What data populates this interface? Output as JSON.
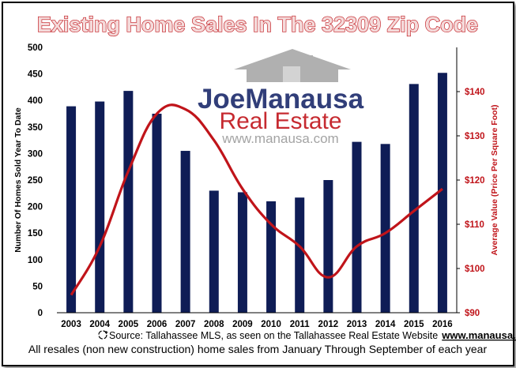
{
  "chart_data": {
    "type": "bar",
    "title": "Existing Home Sales In The 32309 Zip Code",
    "categories": [
      "2003",
      "2004",
      "2005",
      "2006",
      "2007",
      "2008",
      "2009",
      "2010",
      "2011",
      "2012",
      "2013",
      "2014",
      "2015",
      "2016"
    ],
    "series": [
      {
        "name": "Number Of Homes Sold Year To Date",
        "type": "bar",
        "axis": "left",
        "color": "#0f1d56",
        "values": [
          389,
          398,
          418,
          375,
          305,
          230,
          227,
          210,
          217,
          250,
          322,
          318,
          431,
          452
        ]
      },
      {
        "name": "Average Value (Price Per Square Foot)",
        "type": "line",
        "axis": "right",
        "color": "#c0141a",
        "values": [
          94,
          105,
          122,
          135,
          136,
          129,
          118,
          110,
          105,
          98,
          105,
          108,
          113,
          118
        ]
      }
    ],
    "ylabel": "Number Of Homes Sold Year To Date",
    "ylim": [
      0,
      500
    ],
    "yticks": [
      "0",
      "50",
      "100",
      "150",
      "200",
      "250",
      "300",
      "350",
      "400",
      "450",
      "500"
    ],
    "y2label": "Average Value (Price Per Square Foot)",
    "y2lim": [
      90,
      150
    ],
    "y2ticks": [
      "$90",
      "$100",
      "$110",
      "$120",
      "$130",
      "$140"
    ],
    "grid": false,
    "legend": "none"
  },
  "logo": {
    "word1": "Joe",
    "word2": "Manausa",
    "line2": "Real Estate",
    "url": "www.manausa.com"
  },
  "footer": {
    "source_text": "Source: Tallahassee MLS, as seen on the Tallahassee Real Estate Website",
    "source_url": "www.manausa.com",
    "note": "All resales (non new construction) home sales from January Through September of each year"
  },
  "colors": {
    "bar": "#0f1d56",
    "line": "#c0141a",
    "title_fill": "#f4dada",
    "title_stroke": "#c0141a",
    "logo_house": "#a8a8a8"
  },
  "icons": [
    "recycle-icon",
    "house-icon"
  ]
}
